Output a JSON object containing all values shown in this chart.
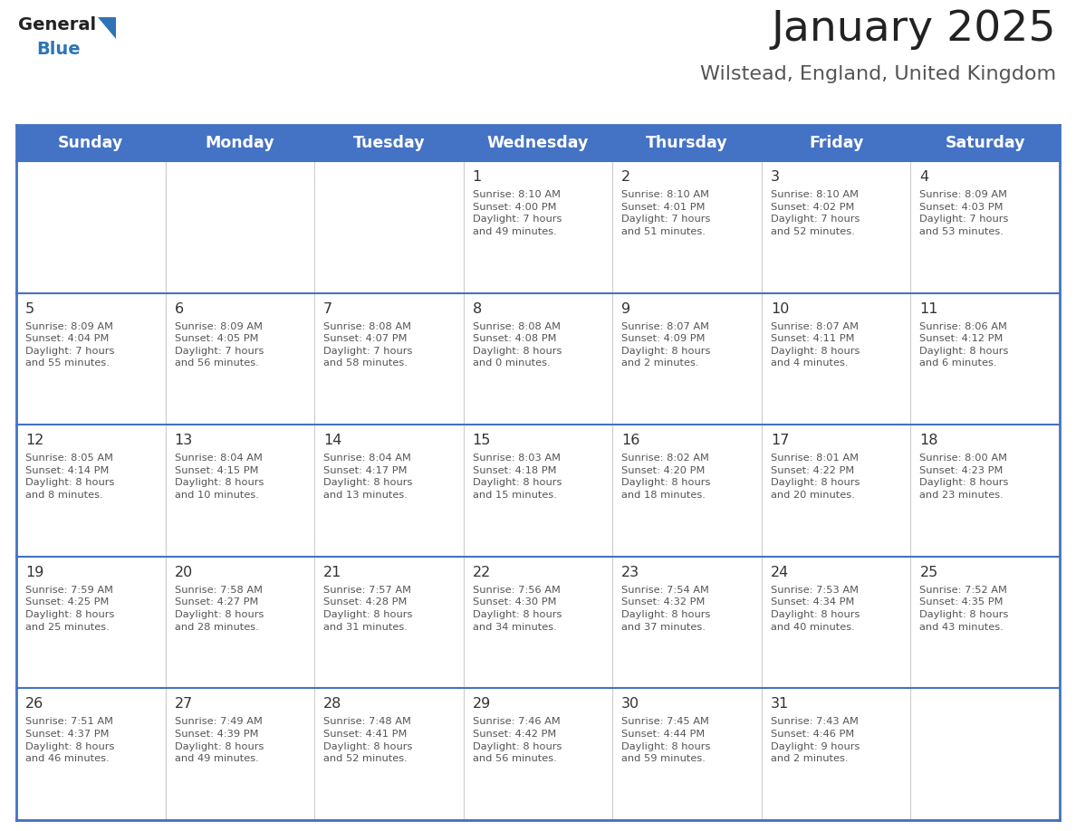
{
  "title": "January 2025",
  "subtitle": "Wilstead, England, United Kingdom",
  "header_color": "#4472C4",
  "header_text_color": "#FFFFFF",
  "days_of_week": [
    "Sunday",
    "Monday",
    "Tuesday",
    "Wednesday",
    "Thursday",
    "Friday",
    "Saturday"
  ],
  "cell_bg_color": "#FFFFFF",
  "day_number_color": "#333333",
  "text_color": "#555555",
  "line_color": "#4472C4",
  "title_color": "#222222",
  "subtitle_color": "#555555",
  "logo_blue": "#2E75B6",
  "logo_dark": "#222222",
  "calendar_data": [
    [
      {
        "day": null,
        "info": null
      },
      {
        "day": null,
        "info": null
      },
      {
        "day": null,
        "info": null
      },
      {
        "day": 1,
        "info": "Sunrise: 8:10 AM\nSunset: 4:00 PM\nDaylight: 7 hours\nand 49 minutes."
      },
      {
        "day": 2,
        "info": "Sunrise: 8:10 AM\nSunset: 4:01 PM\nDaylight: 7 hours\nand 51 minutes."
      },
      {
        "day": 3,
        "info": "Sunrise: 8:10 AM\nSunset: 4:02 PM\nDaylight: 7 hours\nand 52 minutes."
      },
      {
        "day": 4,
        "info": "Sunrise: 8:09 AM\nSunset: 4:03 PM\nDaylight: 7 hours\nand 53 minutes."
      }
    ],
    [
      {
        "day": 5,
        "info": "Sunrise: 8:09 AM\nSunset: 4:04 PM\nDaylight: 7 hours\nand 55 minutes."
      },
      {
        "day": 6,
        "info": "Sunrise: 8:09 AM\nSunset: 4:05 PM\nDaylight: 7 hours\nand 56 minutes."
      },
      {
        "day": 7,
        "info": "Sunrise: 8:08 AM\nSunset: 4:07 PM\nDaylight: 7 hours\nand 58 minutes."
      },
      {
        "day": 8,
        "info": "Sunrise: 8:08 AM\nSunset: 4:08 PM\nDaylight: 8 hours\nand 0 minutes."
      },
      {
        "day": 9,
        "info": "Sunrise: 8:07 AM\nSunset: 4:09 PM\nDaylight: 8 hours\nand 2 minutes."
      },
      {
        "day": 10,
        "info": "Sunrise: 8:07 AM\nSunset: 4:11 PM\nDaylight: 8 hours\nand 4 minutes."
      },
      {
        "day": 11,
        "info": "Sunrise: 8:06 AM\nSunset: 4:12 PM\nDaylight: 8 hours\nand 6 minutes."
      }
    ],
    [
      {
        "day": 12,
        "info": "Sunrise: 8:05 AM\nSunset: 4:14 PM\nDaylight: 8 hours\nand 8 minutes."
      },
      {
        "day": 13,
        "info": "Sunrise: 8:04 AM\nSunset: 4:15 PM\nDaylight: 8 hours\nand 10 minutes."
      },
      {
        "day": 14,
        "info": "Sunrise: 8:04 AM\nSunset: 4:17 PM\nDaylight: 8 hours\nand 13 minutes."
      },
      {
        "day": 15,
        "info": "Sunrise: 8:03 AM\nSunset: 4:18 PM\nDaylight: 8 hours\nand 15 minutes."
      },
      {
        "day": 16,
        "info": "Sunrise: 8:02 AM\nSunset: 4:20 PM\nDaylight: 8 hours\nand 18 minutes."
      },
      {
        "day": 17,
        "info": "Sunrise: 8:01 AM\nSunset: 4:22 PM\nDaylight: 8 hours\nand 20 minutes."
      },
      {
        "day": 18,
        "info": "Sunrise: 8:00 AM\nSunset: 4:23 PM\nDaylight: 8 hours\nand 23 minutes."
      }
    ],
    [
      {
        "day": 19,
        "info": "Sunrise: 7:59 AM\nSunset: 4:25 PM\nDaylight: 8 hours\nand 25 minutes."
      },
      {
        "day": 20,
        "info": "Sunrise: 7:58 AM\nSunset: 4:27 PM\nDaylight: 8 hours\nand 28 minutes."
      },
      {
        "day": 21,
        "info": "Sunrise: 7:57 AM\nSunset: 4:28 PM\nDaylight: 8 hours\nand 31 minutes."
      },
      {
        "day": 22,
        "info": "Sunrise: 7:56 AM\nSunset: 4:30 PM\nDaylight: 8 hours\nand 34 minutes."
      },
      {
        "day": 23,
        "info": "Sunrise: 7:54 AM\nSunset: 4:32 PM\nDaylight: 8 hours\nand 37 minutes."
      },
      {
        "day": 24,
        "info": "Sunrise: 7:53 AM\nSunset: 4:34 PM\nDaylight: 8 hours\nand 40 minutes."
      },
      {
        "day": 25,
        "info": "Sunrise: 7:52 AM\nSunset: 4:35 PM\nDaylight: 8 hours\nand 43 minutes."
      }
    ],
    [
      {
        "day": 26,
        "info": "Sunrise: 7:51 AM\nSunset: 4:37 PM\nDaylight: 8 hours\nand 46 minutes."
      },
      {
        "day": 27,
        "info": "Sunrise: 7:49 AM\nSunset: 4:39 PM\nDaylight: 8 hours\nand 49 minutes."
      },
      {
        "day": 28,
        "info": "Sunrise: 7:48 AM\nSunset: 4:41 PM\nDaylight: 8 hours\nand 52 minutes."
      },
      {
        "day": 29,
        "info": "Sunrise: 7:46 AM\nSunset: 4:42 PM\nDaylight: 8 hours\nand 56 minutes."
      },
      {
        "day": 30,
        "info": "Sunrise: 7:45 AM\nSunset: 4:44 PM\nDaylight: 8 hours\nand 59 minutes."
      },
      {
        "day": 31,
        "info": "Sunrise: 7:43 AM\nSunset: 4:46 PM\nDaylight: 9 hours\nand 2 minutes."
      },
      {
        "day": null,
        "info": null
      }
    ]
  ]
}
